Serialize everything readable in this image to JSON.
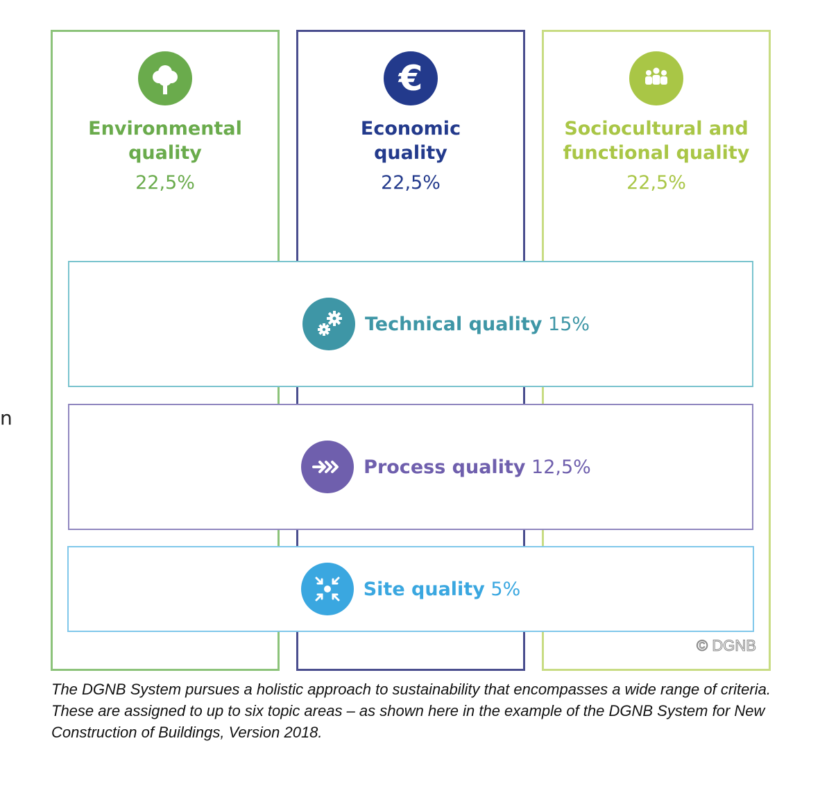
{
  "stray_char": "n",
  "columns": {
    "env": {
      "title_line1": "Environmental",
      "title_line2": "quality",
      "percent": "22,5%",
      "icon": "tree-icon",
      "color": "#6aab4c"
    },
    "eco": {
      "title_line1": "Economic",
      "title_line2": "quality",
      "percent": "22,5%",
      "icon": "euro-icon",
      "color": "#233a8c"
    },
    "soc": {
      "title_line1": "Sociocultural and",
      "title_line2": "functional quality",
      "percent": "22,5%",
      "icon": "people-icon",
      "color": "#a9c646"
    }
  },
  "bands": {
    "tech": {
      "name": "Technical quality",
      "percent": "15%",
      "icon": "gears-icon",
      "color": "#3e96a6"
    },
    "proc": {
      "name": "Process quality",
      "percent": "12,5%",
      "icon": "arrows-icon",
      "color": "#6f5fad"
    },
    "site": {
      "name": "Site quality",
      "percent": "5%",
      "icon": "converge-icon",
      "color": "#3aa7e0"
    }
  },
  "copyright": "© DGNB",
  "caption": "The DGNB System pursues a holistic approach to sustainability that encompasses a wide range of criteria. These are assigned to up to six topic areas – as shown here in the example of the DGNB System for New Construction of Buildings, Version 2018."
}
